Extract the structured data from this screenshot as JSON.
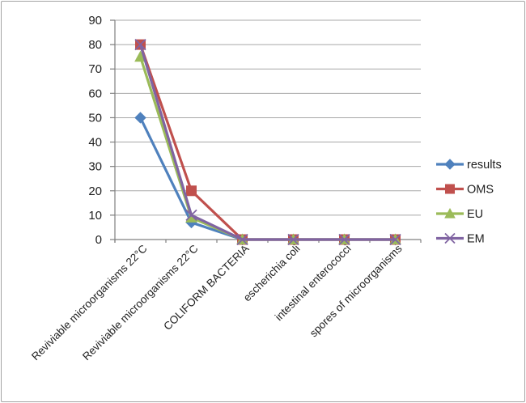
{
  "frame": {
    "background_color": "#ffffff",
    "border_color": "#a3a3a3"
  },
  "chart_data": {
    "type": "line",
    "title": "",
    "xlabel": "",
    "ylabel": "",
    "categories": [
      "Reviviable microorganisms 22°C",
      "Reviviable microorganisms 22°C",
      "COLIFORM BACTERIA",
      "escherichia coli",
      "intestinal enterococci",
      "spores of microorganisms"
    ],
    "series": [
      {
        "name": "results",
        "marker": "diamond",
        "color": "#4F81BD",
        "values": [
          50,
          7,
          0,
          0,
          0,
          0
        ]
      },
      {
        "name": "OMS",
        "marker": "square",
        "color": "#C0504D",
        "values": [
          80,
          20,
          0,
          0,
          0,
          0
        ]
      },
      {
        "name": "EU",
        "marker": "triangle",
        "color": "#9BBB59",
        "values": [
          75,
          9,
          0,
          0,
          0,
          0
        ]
      },
      {
        "name": "EM",
        "marker": "x",
        "color": "#8064A2",
        "values": [
          80,
          10,
          0,
          0,
          0,
          0
        ]
      }
    ],
    "ylim": [
      0,
      90
    ],
    "ytick_step": 10,
    "ytick_labels": [
      "0",
      "10",
      "20",
      "30",
      "40",
      "50",
      "60",
      "70",
      "80",
      "90"
    ],
    "grid": true,
    "legend_position": "right",
    "legend_items": [
      "results",
      "OMS",
      "EU",
      "EM"
    ],
    "x_labels_rotation_deg": -45,
    "colors": {
      "axis": "#808080",
      "gridline": "#A8A8A8",
      "tick_label": "#1f1f1f",
      "legend_label": "#1f1f1f"
    }
  }
}
